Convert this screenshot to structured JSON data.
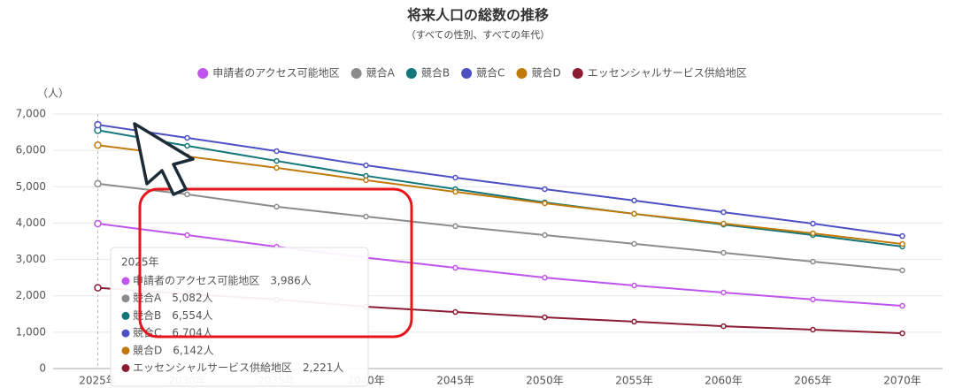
{
  "chart_data": {
    "type": "line",
    "title": "将来人口の総数の推移",
    "subtitle": "（すべての性別、すべての年代）",
    "y_unit": "（人）",
    "categories": [
      "2025年",
      "2030年",
      "2035年",
      "2040年",
      "2045年",
      "2050年",
      "2055年",
      "2060年",
      "2065年",
      "2070年"
    ],
    "series": [
      {
        "name": "申請者のアクセス可能地区",
        "color": "#bf55ec",
        "values": [
          3986,
          3670,
          3350,
          3050,
          2770,
          2500,
          2285,
          2090,
          1900,
          1725
        ]
      },
      {
        "name": "競合A",
        "color": "#8c8c8c",
        "values": [
          5082,
          4790,
          4450,
          4180,
          3915,
          3670,
          3430,
          3185,
          2940,
          2700
        ]
      },
      {
        "name": "競合B",
        "color": "#13777a",
        "values": [
          6554,
          6125,
          5710,
          5300,
          4935,
          4570,
          4255,
          3960,
          3670,
          3355
        ]
      },
      {
        "name": "競合C",
        "color": "#4f4fc4",
        "values": [
          6704,
          6345,
          5980,
          5590,
          5250,
          4935,
          4620,
          4300,
          3985,
          3645
        ]
      },
      {
        "name": "競合D",
        "color": "#c07a0c",
        "values": [
          6142,
          5835,
          5520,
          5180,
          4860,
          4545,
          4255,
          3985,
          3720,
          3425
        ]
      },
      {
        "name": "エッセンシャルサービス供給地区",
        "color": "#8b1c31",
        "values": [
          2221,
          2050,
          1900,
          1700,
          1555,
          1410,
          1290,
          1165,
          1070,
          970
        ]
      }
    ],
    "ylim": [
      0,
      7000
    ],
    "yticks": [
      0,
      {
        "value": 1000,
        "label": "1,000"
      },
      {
        "value": 2000,
        "label": "2,000"
      },
      {
        "value": 3000,
        "label": "3,000"
      },
      {
        "value": 4000,
        "label": "4,000"
      },
      {
        "value": 5000,
        "label": "5,000"
      },
      {
        "value": 6000,
        "label": "6,000"
      },
      {
        "value": 7000,
        "label": "7,000"
      }
    ],
    "grid": true,
    "legend": "top",
    "tooltip": {
      "value_labels": [
        "3,986人",
        "5,082人",
        "6,554人",
        "6,704人",
        "6,142人",
        "2,221人"
      ]
    }
  }
}
